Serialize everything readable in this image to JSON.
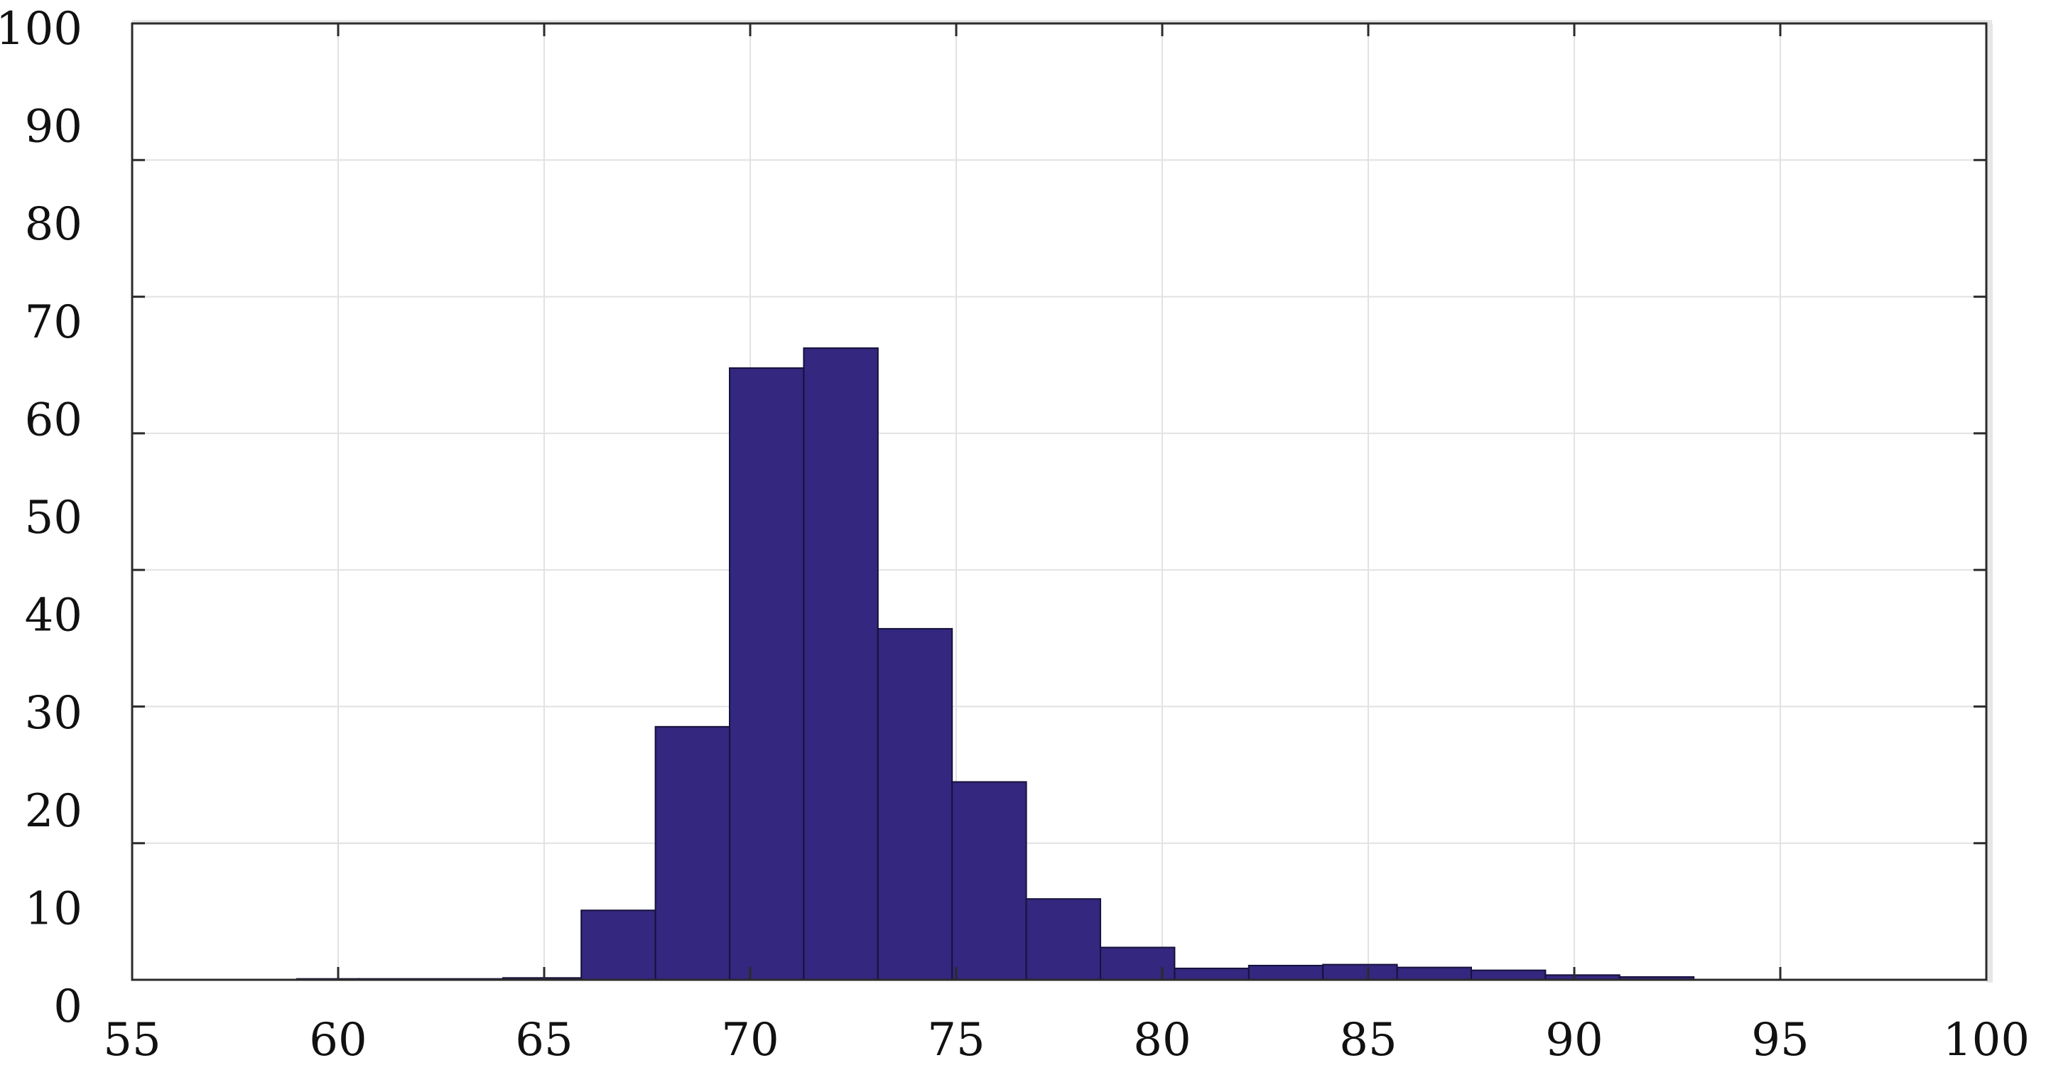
{
  "chart_data": {
    "type": "bar",
    "title": "",
    "xlabel": "",
    "ylabel": "",
    "xlim": [
      55,
      100
    ],
    "ylim": [
      0,
      100
    ],
    "x_ticks": [
      "55",
      "60",
      "65",
      "70",
      "75",
      "80",
      "85",
      "90",
      "95",
      "100"
    ],
    "y_ticks": [
      "0",
      "10",
      "20",
      "30",
      "40",
      "50",
      "60",
      "70",
      "80",
      "90",
      "100"
    ],
    "grid": true,
    "bar_color": "#34277F",
    "bins": [
      {
        "start": 59.0,
        "end": 60.5,
        "value": 0.1
      },
      {
        "start": 60.5,
        "end": 64.0,
        "value": 0.1
      },
      {
        "start": 64.0,
        "end": 65.9,
        "value": 0.2
      },
      {
        "start": 65.9,
        "end": 67.7,
        "value": 7.3
      },
      {
        "start": 67.7,
        "end": 69.5,
        "value": 26.6
      },
      {
        "start": 69.5,
        "end": 71.3,
        "value": 64.3
      },
      {
        "start": 71.3,
        "end": 73.1,
        "value": 66.4
      },
      {
        "start": 73.1,
        "end": 74.9,
        "value": 36.9
      },
      {
        "start": 74.9,
        "end": 76.7,
        "value": 20.8
      },
      {
        "start": 76.7,
        "end": 78.5,
        "value": 8.5
      },
      {
        "start": 78.5,
        "end": 80.3,
        "value": 3.4
      },
      {
        "start": 80.3,
        "end": 82.1,
        "value": 1.2
      },
      {
        "start": 82.1,
        "end": 83.9,
        "value": 1.5
      },
      {
        "start": 83.9,
        "end": 85.7,
        "value": 1.6
      },
      {
        "start": 85.7,
        "end": 87.5,
        "value": 1.3
      },
      {
        "start": 87.5,
        "end": 89.3,
        "value": 1.0
      },
      {
        "start": 89.3,
        "end": 91.1,
        "value": 0.5
      },
      {
        "start": 91.1,
        "end": 92.9,
        "value": 0.3
      }
    ]
  }
}
